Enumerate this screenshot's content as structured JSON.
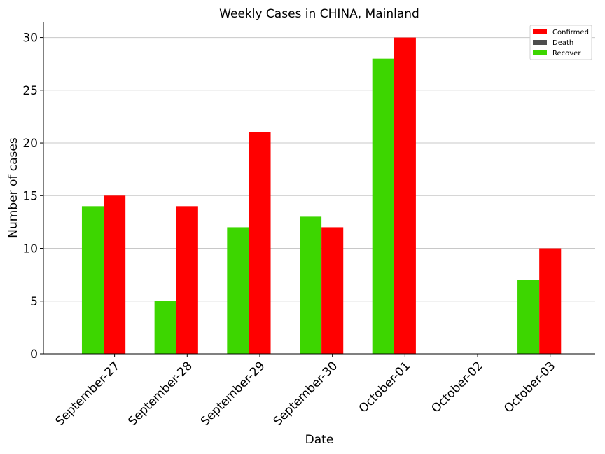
{
  "chart_data": {
    "type": "bar",
    "title": "Weekly Cases in CHINA, Mainland",
    "xlabel": "Date",
    "ylabel": "Number of cases",
    "categories": [
      "September-27",
      "September-28",
      "September-29",
      "September-30",
      "October-01",
      "October-02",
      "October-03"
    ],
    "series": [
      {
        "name": "Confirmed",
        "values": [
          15,
          14,
          21,
          12,
          30,
          0,
          10
        ],
        "color": "#ff0000"
      },
      {
        "name": "Death",
        "values": [
          0,
          0,
          0,
          0,
          0,
          0,
          0
        ],
        "color": "#4d4d4d"
      },
      {
        "name": "Recover",
        "values": [
          14,
          5,
          12,
          13,
          28,
          0,
          7
        ],
        "color": "#3dd600"
      }
    ],
    "ylim": [
      0,
      31.5
    ],
    "yticks": [
      0,
      5,
      10,
      15,
      20,
      25,
      30
    ],
    "grid": "horizontal",
    "legend": "top-right"
  }
}
